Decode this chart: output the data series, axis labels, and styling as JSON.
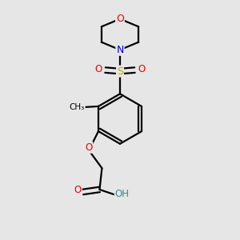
{
  "bg_color": "#e6e6e6",
  "atom_colors": {
    "C": "#000000",
    "H": "#3a8a8a",
    "N": "#0000ee",
    "O": "#ee0000",
    "S": "#bbaa00"
  },
  "bond_color": "#000000",
  "bond_width": 1.6,
  "fig_size": [
    3.0,
    3.0
  ],
  "dpi": 100
}
